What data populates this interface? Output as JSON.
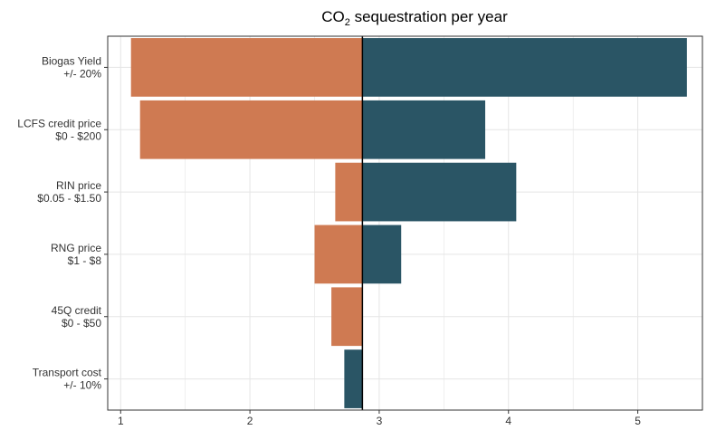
{
  "chart_data": {
    "type": "bar",
    "orientation": "horizontal",
    "chart_style": "tornado",
    "title": {
      "main": "CO",
      "subscript": "2",
      "rest": " sequestration per year"
    },
    "xlabel": "",
    "ylabel": "",
    "xlim": [
      0.9,
      5.5
    ],
    "xticks": [
      1,
      2,
      3,
      4,
      5
    ],
    "grid": true,
    "baseline": 2.87,
    "colors": {
      "low": "#CF7A52",
      "high": "#2A5565",
      "baseline": "#000000",
      "grid": "#E5E5E5",
      "frame": "#333333"
    },
    "categories": [
      {
        "name": "Biogas Yield",
        "range": "+/- 20%",
        "low": 1.08,
        "high": 5.38
      },
      {
        "name": "LCFS credit price",
        "range": "$0 - $200",
        "low": 1.15,
        "high": 3.82
      },
      {
        "name": "RIN price",
        "range": "$0.05 - $1.50",
        "low": 2.66,
        "high": 4.06
      },
      {
        "name": "RNG price",
        "range": "$1 - $8",
        "low": 2.5,
        "high": 3.17
      },
      {
        "name": "45Q credit",
        "range": "$0 - $50",
        "low": 2.63,
        "high": null
      },
      {
        "name": "Transport cost",
        "range": "+/- 10%",
        "low": null,
        "high": 2.73
      }
    ]
  }
}
